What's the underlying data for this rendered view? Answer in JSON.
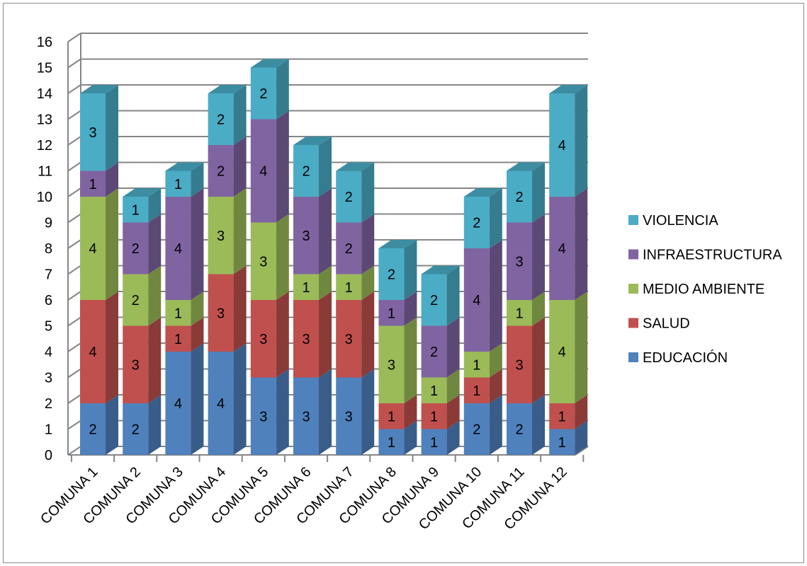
{
  "chart_data": {
    "type": "bar",
    "stacked": true,
    "three_d": true,
    "categories": [
      "COMUNA 1",
      "COMUNA 2",
      "COMUNA 3",
      "COMUNA 4",
      "COMUNA 5",
      "COMUNA 6",
      "COMUNA 7",
      "COMUNA 8",
      "COMUNA 9",
      "COMUNA 10",
      "COMUNA 11",
      "COMUNA 12"
    ],
    "series": [
      {
        "name": "EDUCACIÓN",
        "color": "#4f81bd",
        "values": [
          2,
          2,
          4,
          4,
          3,
          3,
          3,
          1,
          1,
          2,
          2,
          1
        ]
      },
      {
        "name": "SALUD",
        "color": "#c0504d",
        "values": [
          4,
          3,
          1,
          3,
          3,
          3,
          3,
          1,
          1,
          1,
          3,
          1
        ]
      },
      {
        "name": "MEDIO AMBIENTE",
        "color": "#9bbb59",
        "values": [
          4,
          2,
          1,
          3,
          3,
          1,
          1,
          3,
          1,
          1,
          1,
          4
        ]
      },
      {
        "name": "INFRAESTRUCTURA",
        "color": "#8064a2",
        "values": [
          1,
          2,
          4,
          2,
          4,
          3,
          2,
          1,
          2,
          4,
          3,
          4
        ]
      },
      {
        "name": "VIOLENCIA",
        "color": "#4bacc6",
        "values": [
          3,
          1,
          1,
          2,
          2,
          2,
          2,
          2,
          2,
          2,
          2,
          4
        ]
      }
    ],
    "ylim": [
      0,
      16
    ],
    "yticks": [
      "0",
      "1",
      "2",
      "3",
      "4",
      "5",
      "6",
      "7",
      "8",
      "9",
      "10",
      "11",
      "12",
      "13",
      "14",
      "15",
      "16"
    ],
    "title": "",
    "xlabel": "",
    "ylabel": "",
    "grid": true,
    "legend": "right",
    "data_labels": true
  }
}
